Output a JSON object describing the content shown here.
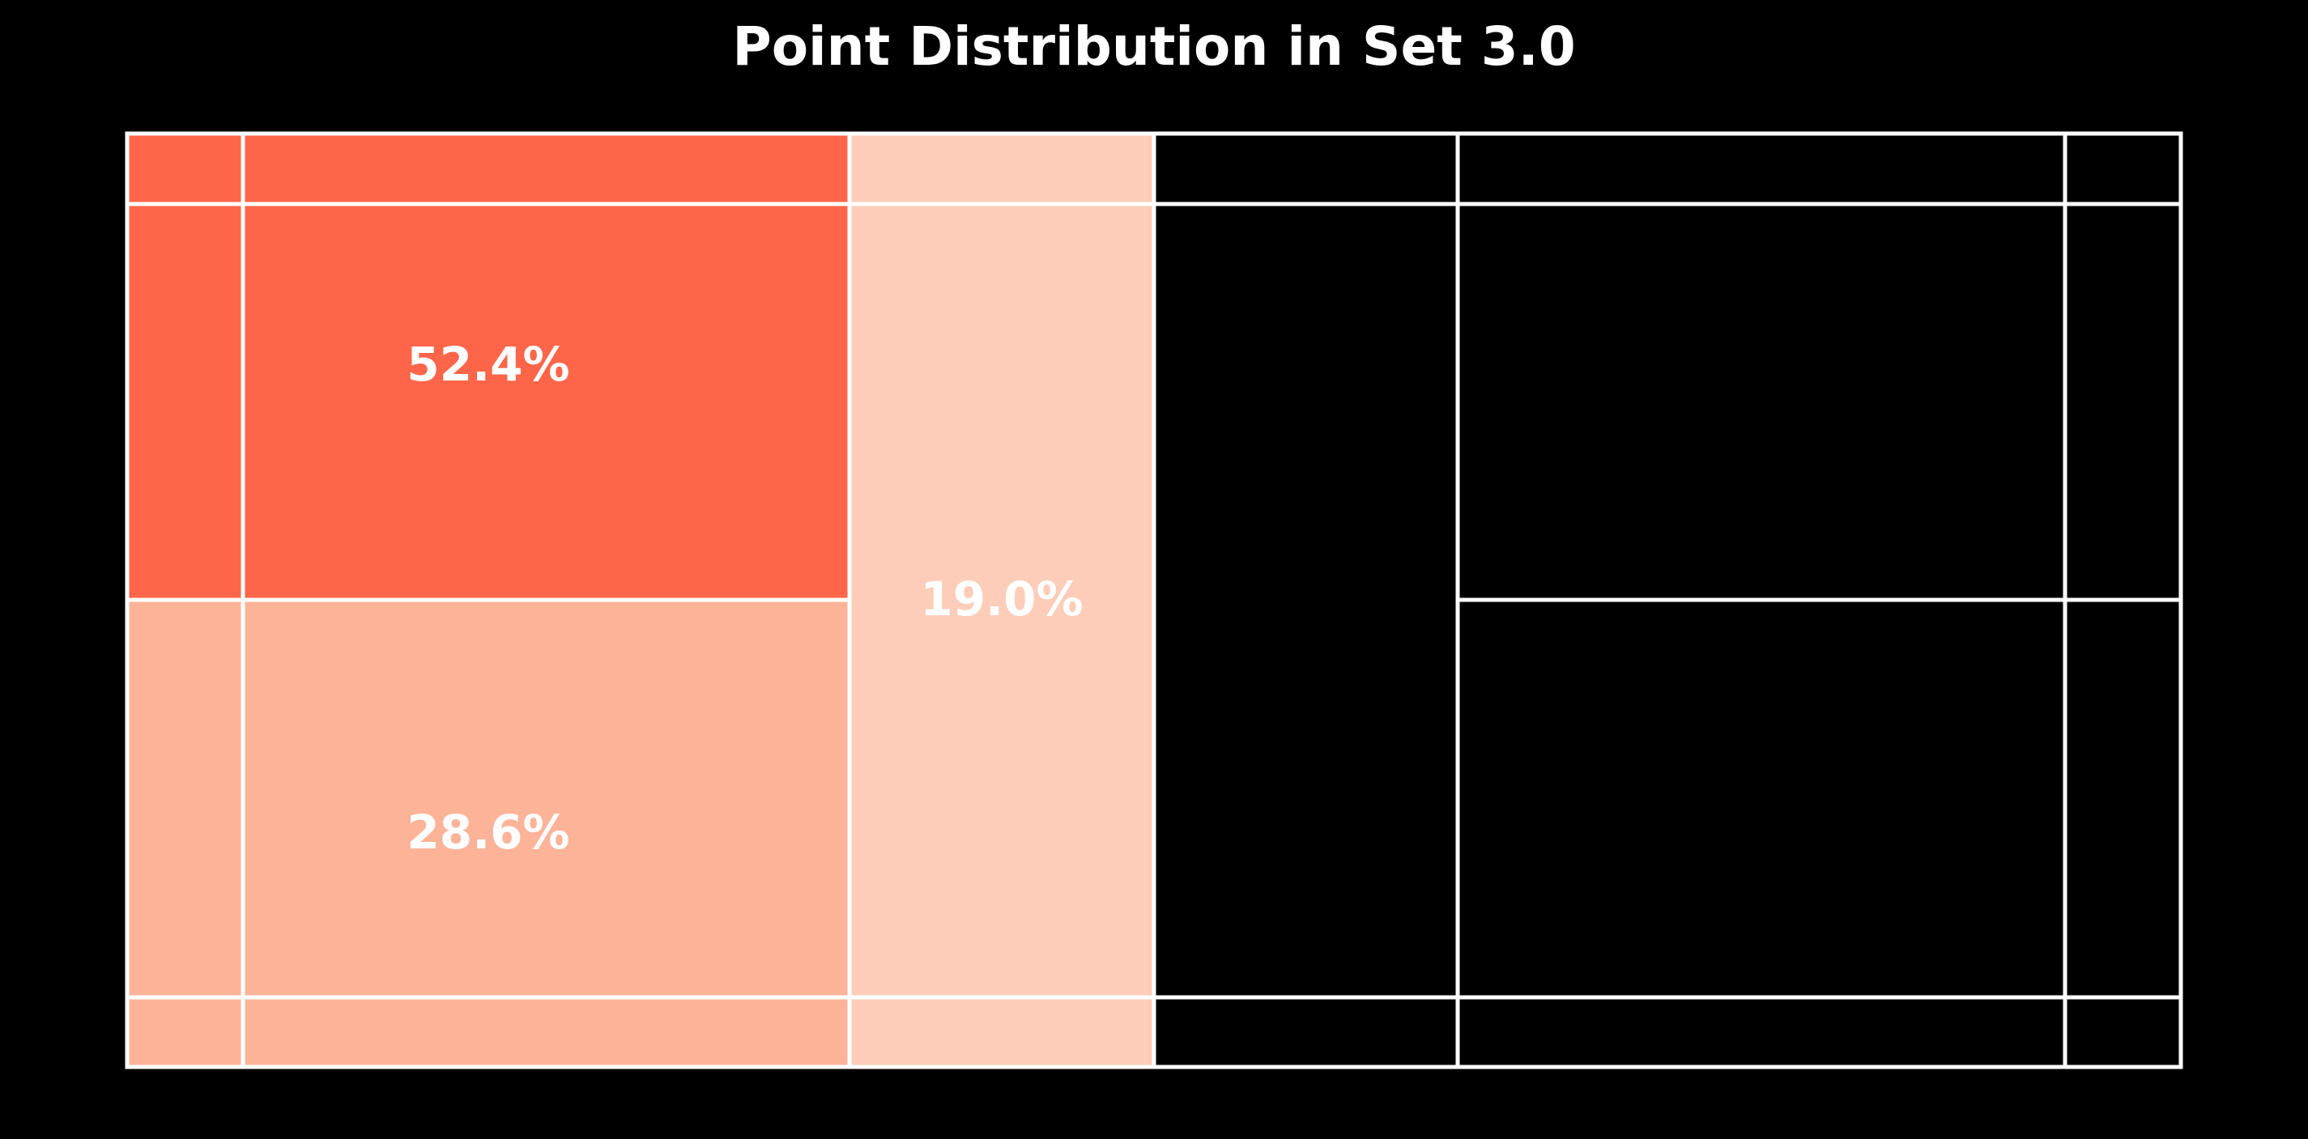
{
  "chart_data": {
    "type": "area",
    "title": "Point Distribution in Set 3.0",
    "xlabel": "",
    "ylabel": "",
    "grid": false,
    "regions": [
      {
        "name": "",
        "value": 52.4,
        "label": "52.4%",
        "color": "#fe6549"
      },
      {
        "name": "",
        "value": 28.6,
        "label": "28.6%",
        "color": "#fdb398"
      },
      {
        "name": "",
        "value": 19.0,
        "label": "19.0%",
        "color": "#fdcdb9"
      }
    ],
    "court_line_color": "#ffffff",
    "background_color": "#000000"
  }
}
